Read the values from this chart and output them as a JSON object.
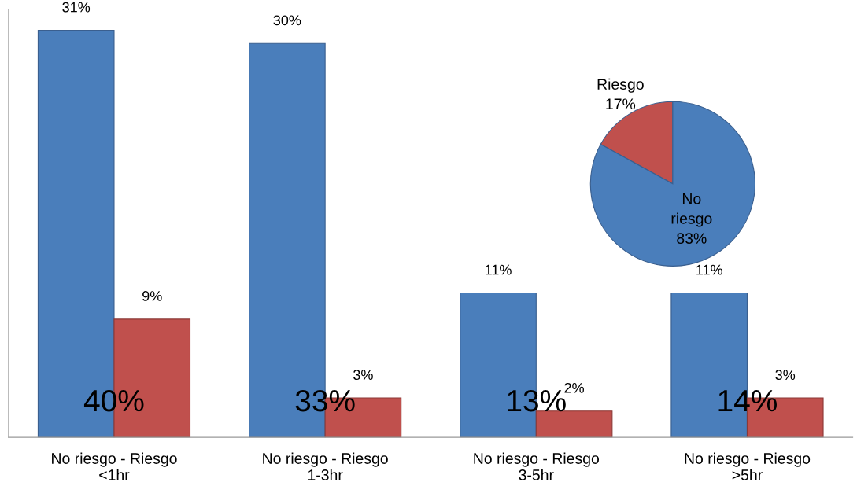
{
  "chart_data": [
    {
      "type": "bar",
      "categories": [
        "No riesgo - Riesgo\n<1hr",
        "No riesgo - Riesgo\n1-3hr",
        "No riesgo - Riesgo\n3-5hr",
        "No riesgo - Riesgo\n>5hr"
      ],
      "series": [
        {
          "color": "#4a7ebb",
          "values": [
            31,
            30,
            11,
            11
          ],
          "value_labels": [
            "31%",
            "30%",
            "11%",
            "11%"
          ]
        },
        {
          "color": "#c0504d",
          "values": [
            9,
            3,
            2,
            3
          ],
          "value_labels": [
            "9%",
            "3%",
            "2%",
            "3%"
          ]
        }
      ],
      "totals": [
        "40%",
        "33%",
        "13%",
        "14%"
      ],
      "grid": false,
      "legend": false
    },
    {
      "type": "pie",
      "categories": [
        "Riesgo",
        "No\nriesgo"
      ],
      "values": [
        17,
        83
      ],
      "colors": [
        "#c0504d",
        "#4a7ebb"
      ],
      "value_labels": [
        "17%",
        "83%"
      ]
    }
  ]
}
